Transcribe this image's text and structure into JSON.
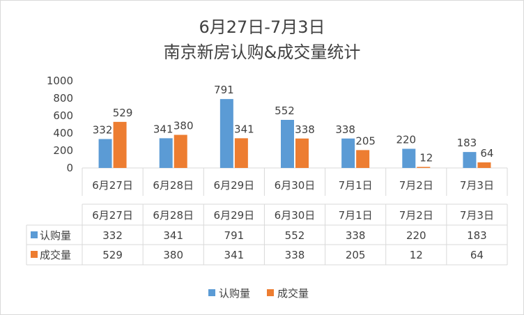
{
  "chart_data": {
    "type": "bar",
    "title_line1": "6月27日-7月3日",
    "title_line2": "南京新房认购&成交量统计",
    "categories": [
      "6月27日",
      "6月28日",
      "6月29日",
      "6月30日",
      "7月1日",
      "7月2日",
      "7月3日"
    ],
    "series": [
      {
        "name": "认购量",
        "color": "#5b9bd5",
        "values": [
          332,
          341,
          791,
          552,
          338,
          220,
          183
        ]
      },
      {
        "name": "成交量",
        "color": "#ed7d31",
        "values": [
          529,
          380,
          341,
          338,
          205,
          12,
          64
        ]
      }
    ],
    "ylim": [
      0,
      1000
    ],
    "yticks": [
      0,
      200,
      400,
      600,
      800,
      1000
    ],
    "grid": false,
    "legend": "bottom",
    "data_table": true
  }
}
